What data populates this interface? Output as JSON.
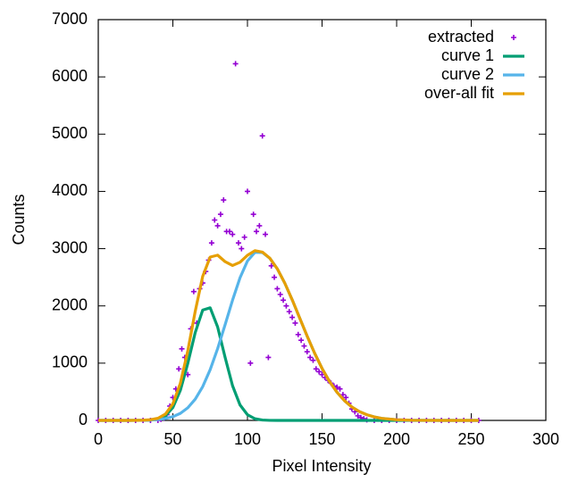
{
  "chart_data": {
    "type": "line",
    "xlabel": "Pixel Intensity",
    "ylabel": "Counts",
    "xlim": [
      0,
      300
    ],
    "xticks": [
      0,
      50,
      100,
      150,
      200,
      250,
      300
    ],
    "ylim": [
      0,
      7000
    ],
    "yticks": [
      0,
      1000,
      2000,
      3000,
      4000,
      5000,
      6000,
      7000
    ],
    "legend": "top-right",
    "series": [
      {
        "name": "extracted",
        "color": "#9400d3",
        "style": "points",
        "x": [
          0,
          5,
          10,
          15,
          20,
          25,
          30,
          35,
          40,
          42,
          44,
          46,
          48,
          50,
          52,
          54,
          56,
          58,
          60,
          62,
          64,
          66,
          68,
          70,
          72,
          74,
          76,
          78,
          80,
          82,
          84,
          86,
          88,
          90,
          92,
          94,
          96,
          98,
          100,
          102,
          104,
          106,
          108,
          110,
          112,
          114,
          116,
          118,
          120,
          122,
          124,
          126,
          128,
          130,
          132,
          134,
          136,
          138,
          140,
          142,
          144,
          146,
          148,
          150,
          152,
          154,
          156,
          158,
          160,
          162,
          164,
          166,
          168,
          170,
          172,
          174,
          176,
          178,
          180,
          185,
          190,
          195,
          200,
          205,
          210,
          215,
          220,
          225,
          230,
          235,
          240,
          245,
          250,
          255
        ],
        "values": [
          0,
          0,
          0,
          0,
          0,
          0,
          0,
          0,
          0,
          20,
          40,
          100,
          250,
          400,
          550,
          900,
          1250,
          1100,
          800,
          1600,
          2250,
          1700,
          2300,
          2400,
          2600,
          2800,
          3100,
          3500,
          3400,
          3600,
          3850,
          3300,
          3300,
          3250,
          6230,
          3100,
          3000,
          3200,
          4000,
          1000,
          3600,
          3300,
          3400,
          4970,
          3250,
          1100,
          2700,
          2500,
          2300,
          2200,
          2100,
          2000,
          1900,
          1800,
          1700,
          1500,
          1400,
          1300,
          1200,
          1100,
          1050,
          900,
          850,
          800,
          750,
          700,
          650,
          600,
          580,
          550,
          450,
          400,
          300,
          200,
          150,
          80,
          50,
          30,
          10,
          0,
          0,
          0,
          0,
          0,
          0,
          0,
          0,
          0,
          0,
          0,
          0,
          0,
          0,
          0
        ]
      },
      {
        "name": "curve 1",
        "color": "#009e73",
        "style": "lines",
        "x": [
          0,
          10,
          20,
          30,
          35,
          40,
          45,
          50,
          55,
          60,
          65,
          70,
          75,
          80,
          85,
          90,
          95,
          100,
          105,
          110,
          115,
          120,
          125,
          130,
          135,
          140,
          145,
          150,
          155,
          160,
          165,
          170,
          175,
          180,
          185,
          190,
          200,
          210,
          220,
          230,
          240,
          255
        ],
        "values": [
          0,
          0,
          0,
          1,
          5,
          22,
          78,
          225,
          524,
          995,
          1536,
          1927,
          1967,
          1633,
          1103,
          606,
          271,
          99,
          29,
          7,
          1,
          0,
          0,
          0,
          0,
          0,
          0,
          0,
          0,
          0,
          0,
          0,
          0,
          0,
          0,
          0,
          0,
          0,
          0,
          0,
          0,
          0
        ]
      },
      {
        "name": "curve 2",
        "color": "#56b4e9",
        "style": "lines",
        "x": [
          0,
          10,
          20,
          30,
          35,
          40,
          45,
          50,
          55,
          60,
          65,
          70,
          75,
          80,
          85,
          90,
          95,
          100,
          105,
          110,
          115,
          120,
          125,
          130,
          135,
          140,
          145,
          150,
          155,
          160,
          165,
          170,
          175,
          180,
          185,
          190,
          200,
          210,
          220,
          230,
          240,
          255
        ],
        "values": [
          0,
          0,
          0,
          3,
          7,
          15,
          32,
          65,
          123,
          220,
          371,
          590,
          886,
          1253,
          1670,
          2100,
          2491,
          2785,
          2936,
          2933,
          2832,
          2648,
          2399,
          2106,
          1789,
          1473,
          1175,
          908,
          679,
          492,
          345,
          234,
          155,
          99,
          61,
          36,
          12,
          3,
          1,
          0,
          0,
          0
        ]
      },
      {
        "name": "over-all fit",
        "color": "#e69f00",
        "style": "lines",
        "x": [
          0,
          10,
          20,
          30,
          35,
          40,
          45,
          50,
          55,
          60,
          65,
          70,
          75,
          80,
          85,
          90,
          95,
          100,
          105,
          110,
          115,
          120,
          125,
          130,
          135,
          140,
          145,
          150,
          155,
          160,
          165,
          170,
          175,
          180,
          185,
          190,
          200,
          210,
          220,
          230,
          240,
          255
        ],
        "values": [
          0,
          0,
          0,
          4,
          12,
          37,
          110,
          290,
          647,
          1215,
          1907,
          2517,
          2853,
          2886,
          2773,
          2706,
          2762,
          2884,
          2965,
          2940,
          2833,
          2648,
          2399,
          2106,
          1789,
          1473,
          1175,
          908,
          679,
          492,
          345,
          234,
          155,
          99,
          61,
          36,
          12,
          3,
          1,
          0,
          0,
          0
        ]
      }
    ]
  }
}
